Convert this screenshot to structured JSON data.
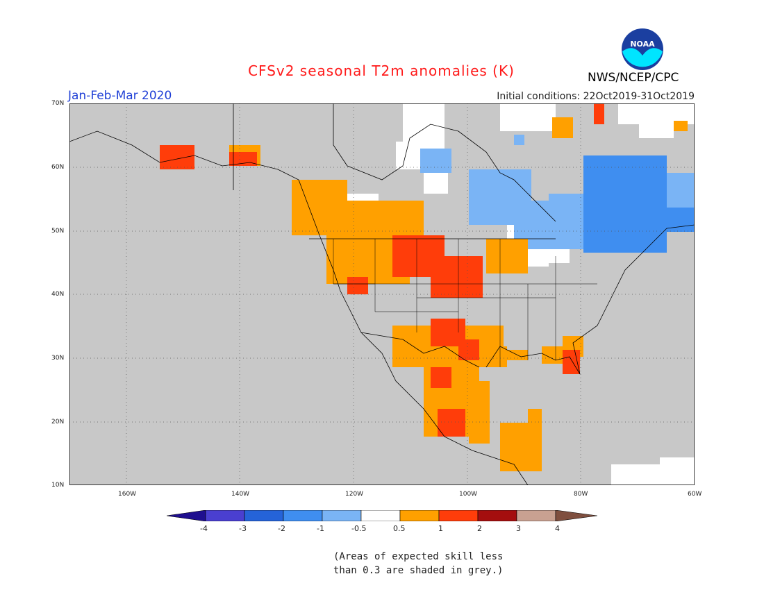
{
  "title": "CFSv2 seasonal T2m anomalies (K)",
  "season": "Jan-Feb-Mar 2020",
  "initial_conditions": "Initial conditions: 22Oct2019-31Oct2019",
  "agency": "NWS/NCEP/CPC",
  "logo_text": "NOAA",
  "lat_labels": [
    "70N",
    "60N",
    "50N",
    "40N",
    "30N",
    "20N",
    "10N"
  ],
  "lon_labels": [
    "160W",
    "140W",
    "120W",
    "100W",
    "80W",
    "60W"
  ],
  "colorbar": {
    "labels": [
      "-4",
      "-3",
      "-2",
      "-1",
      "-0.5",
      "0.5",
      "1",
      "2",
      "3",
      "4"
    ],
    "colors": [
      "#1f0f8f",
      "#4a3fd0",
      "#2563d8",
      "#3f8ef0",
      "#7ab4f5",
      "#ffffff",
      "#ffa000",
      "#ff3d0a",
      "#a40e0e",
      "#c9a191",
      "#7f4f3f"
    ]
  },
  "note_line1": "(Areas of expected skill less",
  "note_line2": "than 0.3 are shaded in grey.)",
  "colors": {
    "grey": "#c8c8c8",
    "white": "#ffffff",
    "orange": "#ffa000",
    "red": "#ff3d0a",
    "lightblue": "#7ab4f5",
    "blue": "#3f8ef0"
  }
}
